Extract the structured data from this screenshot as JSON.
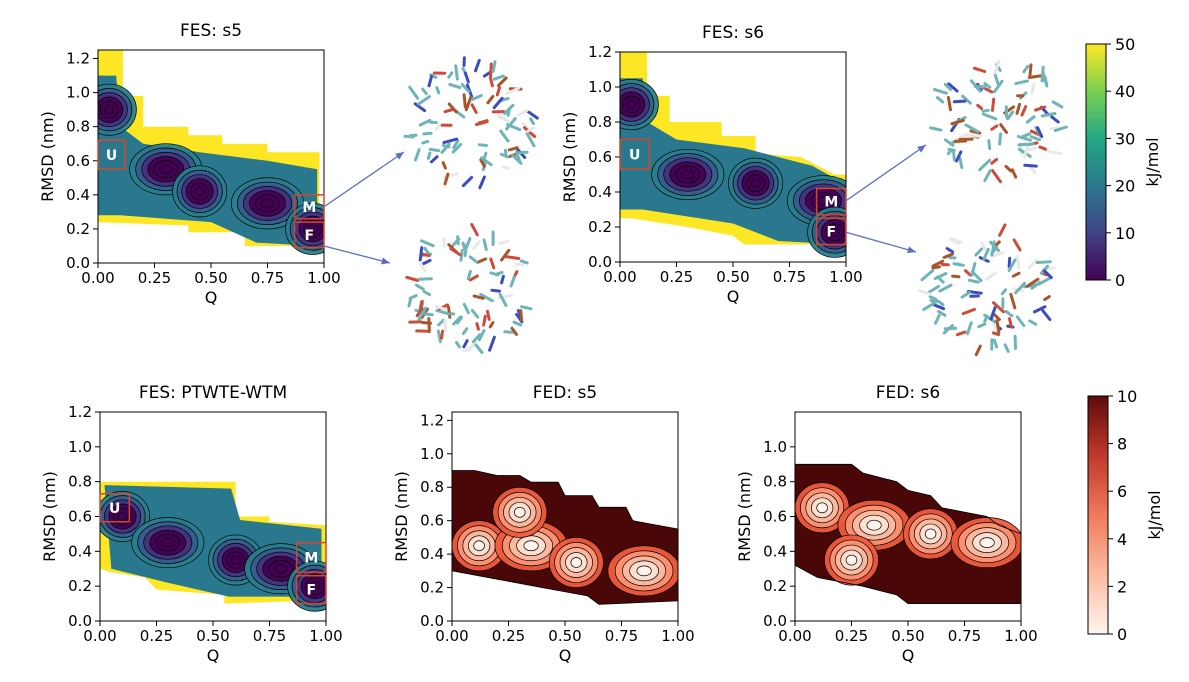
{
  "figure": {
    "colorbar_fes": {
      "min": 0,
      "max": 50,
      "ticks": [
        "0",
        "10",
        "20",
        "30",
        "40",
        "50"
      ],
      "label": "kJ/mol",
      "colormap": "viridis"
    },
    "colorbar_fed": {
      "min": 0,
      "max": 10,
      "ticks": [
        "0",
        "2",
        "4",
        "6",
        "8",
        "10"
      ],
      "label": "kJ/mol",
      "colormap": "reds"
    },
    "structure_images": [
      "misfolded-structure-s5",
      "folded-structure-s5",
      "misfolded-structure-s6",
      "folded-structure-s6"
    ]
  },
  "chart_data": [
    {
      "id": "fes_s5",
      "type": "heatmap",
      "title": "FES: s5",
      "xlabel": "Q",
      "ylabel": "RMSD (nm)",
      "xlim": [
        0,
        1
      ],
      "ylim": [
        0,
        1.25
      ],
      "xticks": [
        "0.00",
        "0.25",
        "0.50",
        "0.75",
        "1.00"
      ],
      "yticks": [
        "0.0",
        "0.2",
        "0.4",
        "0.6",
        "0.8",
        "1.0",
        "1.2"
      ],
      "colormap": "viridis",
      "zlim": [
        0,
        50
      ],
      "minima": [
        [
          0.05,
          0.9
        ],
        [
          0.3,
          0.55
        ],
        [
          0.45,
          0.42
        ],
        [
          0.75,
          0.35
        ],
        [
          0.95,
          0.2
        ]
      ],
      "regions": [
        {
          "label": "U",
          "q": [
            0.0,
            0.12
          ],
          "rmsd": [
            0.55,
            0.72
          ]
        },
        {
          "label": "M",
          "q": [
            0.87,
            1.0
          ],
          "rmsd": [
            0.26,
            0.4
          ]
        },
        {
          "label": "F",
          "q": [
            0.87,
            1.0
          ],
          "rmsd": [
            0.09,
            0.24
          ]
        }
      ]
    },
    {
      "id": "fes_s6",
      "type": "heatmap",
      "title": "FES: s6",
      "xlabel": "Q",
      "ylabel": "RMSD (nm)",
      "xlim": [
        0,
        1
      ],
      "ylim": [
        0,
        1.2
      ],
      "xticks": [
        "0.00",
        "0.25",
        "0.50",
        "0.75",
        "1.00"
      ],
      "yticks": [
        "0.0",
        "0.2",
        "0.4",
        "0.6",
        "0.8",
        "1.0",
        "1.2"
      ],
      "colormap": "viridis",
      "zlim": [
        0,
        50
      ],
      "minima": [
        [
          0.05,
          0.9
        ],
        [
          0.3,
          0.5
        ],
        [
          0.6,
          0.45
        ],
        [
          0.9,
          0.35
        ],
        [
          0.95,
          0.17
        ]
      ],
      "regions": [
        {
          "label": "U",
          "q": [
            0.0,
            0.13
          ],
          "rmsd": [
            0.53,
            0.7
          ]
        },
        {
          "label": "M",
          "q": [
            0.87,
            1.0
          ],
          "rmsd": [
            0.27,
            0.42
          ]
        },
        {
          "label": "F",
          "q": [
            0.87,
            1.0
          ],
          "rmsd": [
            0.1,
            0.25
          ]
        }
      ]
    },
    {
      "id": "fes_ptwte",
      "type": "heatmap",
      "title": "FES: PTWTE-WTM",
      "xlabel": "Q",
      "ylabel": "RMSD (nm)",
      "xlim": [
        0,
        1
      ],
      "ylim": [
        0,
        1.2
      ],
      "xticks": [
        "0.00",
        "0.25",
        "0.50",
        "0.75",
        "1.00"
      ],
      "yticks": [
        "0.0",
        "0.2",
        "0.4",
        "0.6",
        "0.8",
        "1.0",
        "1.2"
      ],
      "colormap": "viridis",
      "zlim": [
        0,
        50
      ],
      "minima": [
        [
          0.1,
          0.6
        ],
        [
          0.3,
          0.45
        ],
        [
          0.6,
          0.35
        ],
        [
          0.8,
          0.3
        ],
        [
          0.95,
          0.2
        ]
      ],
      "regions": [
        {
          "label": "U",
          "q": [
            0.0,
            0.13
          ],
          "rmsd": [
            0.57,
            0.73
          ]
        },
        {
          "label": "M",
          "q": [
            0.87,
            1.0
          ],
          "rmsd": [
            0.28,
            0.45
          ]
        },
        {
          "label": "F",
          "q": [
            0.87,
            1.0
          ],
          "rmsd": [
            0.1,
            0.26
          ]
        }
      ]
    },
    {
      "id": "fed_s5",
      "type": "heatmap",
      "title": "FED: s5",
      "xlabel": "Q",
      "ylabel": "RMSD (nm)",
      "xlim": [
        0,
        1
      ],
      "ylim": [
        0,
        1.25
      ],
      "xticks": [
        "0.00",
        "0.25",
        "0.50",
        "0.75",
        "1.00"
      ],
      "yticks": [
        "0.0",
        "0.2",
        "0.4",
        "0.6",
        "0.8",
        "1.0",
        "1.2"
      ],
      "colormap": "reds",
      "zlim": [
        0,
        10
      ]
    },
    {
      "id": "fed_s6",
      "type": "heatmap",
      "title": "FED: s6",
      "xlabel": "Q",
      "ylabel": "RMSD (nm)",
      "xlim": [
        0,
        1
      ],
      "ylim": [
        0,
        1.2
      ],
      "xticks": [
        "0.00",
        "0.25",
        "0.50",
        "0.75",
        "1.00"
      ],
      "yticks": [
        "0.0",
        "0.2",
        "0.4",
        "0.6",
        "0.8",
        "1.0"
      ],
      "colormap": "reds",
      "zlim": [
        0,
        10
      ]
    }
  ]
}
